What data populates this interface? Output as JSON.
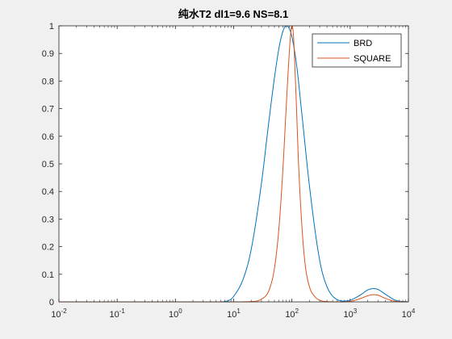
{
  "chart_data": {
    "type": "line",
    "title": "纯水T2 dl1=9.6 NS=8.1",
    "xlabel": "",
    "ylabel": "",
    "xscale": "log",
    "xlim": [
      0.01,
      10000
    ],
    "ylim": [
      0,
      1
    ],
    "x_ticks": [
      {
        "base": "10",
        "exp": "-2",
        "value": 0.01
      },
      {
        "base": "10",
        "exp": "-1",
        "value": 0.1
      },
      {
        "base": "10",
        "exp": "0",
        "value": 1
      },
      {
        "base": "10",
        "exp": "1",
        "value": 10
      },
      {
        "base": "10",
        "exp": "2",
        "value": 100
      },
      {
        "base": "10",
        "exp": "3",
        "value": 1000
      },
      {
        "base": "10",
        "exp": "4",
        "value": 10000
      }
    ],
    "y_ticks": [
      "0",
      "0.1",
      "0.2",
      "0.3",
      "0.4",
      "0.5",
      "0.6",
      "0.7",
      "0.8",
      "0.9",
      "1"
    ],
    "legend_position": "top-right",
    "grid": false,
    "series": [
      {
        "name": "BRD",
        "color": "#0072BD",
        "x": [
          0.01,
          1,
          5,
          8,
          10,
          15,
          20,
          30,
          40,
          50,
          60,
          70,
          80,
          90,
          100,
          120,
          150,
          200,
          300,
          400,
          600,
          800,
          1000,
          1500,
          2000,
          2500,
          3000,
          4000,
          6000,
          10000
        ],
        "y": [
          0,
          0,
          0,
          0.004,
          0.02,
          0.09,
          0.19,
          0.43,
          0.65,
          0.81,
          0.92,
          0.98,
          1.0,
          0.99,
          0.96,
          0.86,
          0.67,
          0.42,
          0.15,
          0.055,
          0.008,
          0.003,
          0.006,
          0.025,
          0.043,
          0.048,
          0.045,
          0.028,
          0.006,
          0
        ]
      },
      {
        "name": "SQUARE",
        "color": "#D95319",
        "x": [
          0.01,
          1,
          10,
          20,
          30,
          40,
          50,
          60,
          70,
          80,
          90,
          95,
          100,
          105,
          110,
          120,
          130,
          150,
          170,
          200,
          250,
          300,
          400,
          600,
          1000,
          1500,
          2000,
          2500,
          3000,
          4000,
          6000,
          10000
        ],
        "y": [
          0,
          0,
          0,
          0.001,
          0.01,
          0.04,
          0.12,
          0.27,
          0.48,
          0.71,
          0.9,
          0.97,
          1.0,
          0.98,
          0.9,
          0.7,
          0.5,
          0.26,
          0.13,
          0.055,
          0.018,
          0.006,
          0.001,
          0,
          0.002,
          0.012,
          0.022,
          0.026,
          0.024,
          0.013,
          0.002,
          0
        ]
      }
    ]
  }
}
